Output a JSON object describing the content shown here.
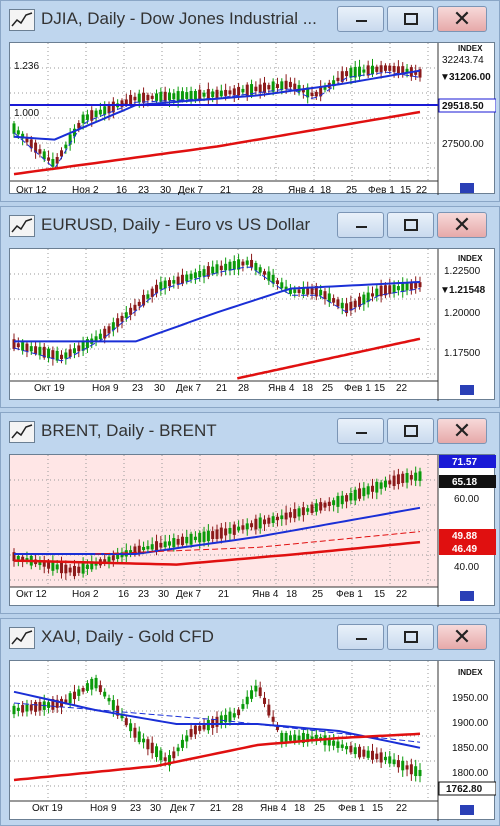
{
  "windows": [
    {
      "title": "DJIA, Daily - Dow Jones Industrial ...",
      "scale_label": "1.236",
      "ref_label": "1.000",
      "index_label": "INDEX",
      "prices": [
        "32243.74",
        "31206.00",
        "29518.50",
        "27500.00"
      ],
      "dates": [
        "Окт 12",
        "Ноя 2",
        "16",
        "23",
        "30",
        "Дек 7",
        "21",
        "28",
        "Янв 4",
        "18",
        "25",
        "Фев 1",
        "15",
        "22"
      ]
    },
    {
      "title": "EURUSD, Daily - Euro vs US Dollar",
      "index_label": "INDEX",
      "prices": [
        "1.22500",
        "1.21548",
        "1.20000",
        "1.17500"
      ],
      "dates": [
        "Окт 19",
        "Ноя 9",
        "23",
        "30",
        "Дек 7",
        "21",
        "28",
        "Янв 4",
        "18",
        "25",
        "Фев 1",
        "15",
        "22"
      ]
    },
    {
      "title": "BRENT, Daily - BRENT",
      "prices": [
        "71.57",
        "65.18",
        "60.00",
        "49.88",
        "46.49",
        "40.00"
      ],
      "dates": [
        "Окт 12",
        "Ноя 2",
        "16",
        "23",
        "30",
        "Дек 7",
        "21",
        "Янв 4",
        "18",
        "25",
        "Фев 1",
        "15",
        "22"
      ]
    },
    {
      "title": "XAU, Daily - Gold CFD",
      "index_label": "INDEX",
      "prices": [
        "1950.00",
        "1900.00",
        "1850.00",
        "1800.00",
        "1762.80"
      ],
      "dates": [
        "Окт 19",
        "Ноя 9",
        "23",
        "30",
        "Дек 7",
        "21",
        "28",
        "Янв 4",
        "18",
        "25",
        "Фев 1",
        "15",
        "22"
      ]
    }
  ],
  "colors": {
    "candle_up": "#0a9a0a",
    "candle_down": "#8b1a1a",
    "ma_blue": "#1a2fd6",
    "ma_red": "#e01010",
    "brent_bg": "#ffe6e6"
  }
}
